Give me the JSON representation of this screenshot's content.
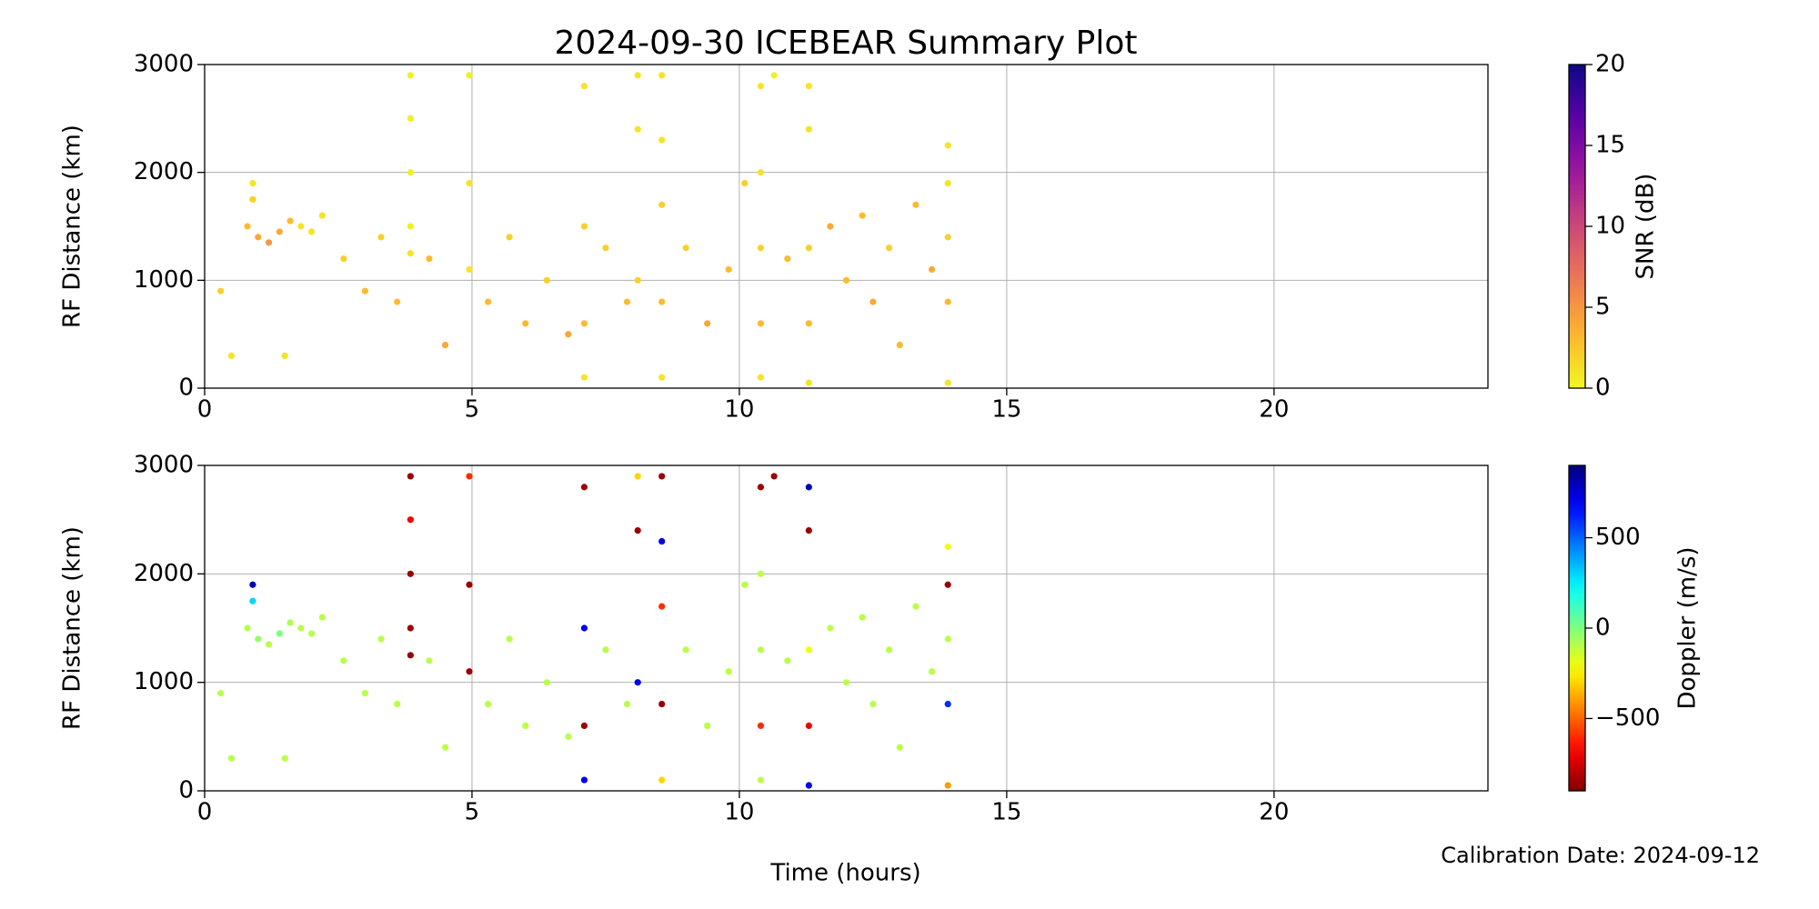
{
  "title": "2024-09-30 ICEBEAR Summary Plot",
  "xlabel": "Time (hours)",
  "calibration": "Calibration Date: 2024-09-12",
  "chart_data": [
    {
      "type": "scatter",
      "ylabel": "RF Distance (km)",
      "colorbar_label": "SNR (dB)",
      "colormap": "plasma_r",
      "clim": [
        0,
        20
      ],
      "cticks": [
        0,
        5,
        10,
        15,
        20
      ],
      "xlim": [
        0,
        24
      ],
      "xticks": [
        0,
        5,
        10,
        15,
        20
      ],
      "ylim": [
        0,
        3000
      ],
      "yticks": [
        0,
        1000,
        2000,
        3000
      ],
      "grid": true,
      "x": [
        0.8,
        1.0,
        1.2,
        1.4,
        1.6,
        0.9,
        0.9,
        1.8,
        2.0,
        2.2,
        0.3,
        0.5,
        1.5,
        2.6,
        3.0,
        3.3,
        3.6,
        3.85,
        3.85,
        3.85,
        3.85,
        3.85,
        4.2,
        4.5,
        4.95,
        4.95,
        4.95,
        5.3,
        5.7,
        6.0,
        6.4,
        6.8,
        7.1,
        7.1,
        7.1,
        7.1,
        7.5,
        7.9,
        8.1,
        8.1,
        8.1,
        8.55,
        8.55,
        8.55,
        8.55,
        8.55,
        9.0,
        9.4,
        9.8,
        10.1,
        10.4,
        10.4,
        10.4,
        10.4,
        10.4,
        10.65,
        10.9,
        11.3,
        11.3,
        11.3,
        11.3,
        11.3,
        11.7,
        12.0,
        12.3,
        12.5,
        12.8,
        13.0,
        13.3,
        13.6,
        13.9,
        13.9,
        13.9,
        13.9,
        13.9
      ],
      "y": [
        1500,
        1400,
        1350,
        1450,
        1550,
        1900,
        1750,
        1500,
        1450,
        1600,
        900,
        300,
        300,
        1200,
        900,
        1400,
        800,
        2900,
        2500,
        2000,
        1500,
        1250,
        1200,
        400,
        2900,
        1900,
        1100,
        800,
        1400,
        600,
        1000,
        500,
        2800,
        1500,
        600,
        100,
        1300,
        800,
        2900,
        2400,
        1000,
        2900,
        2300,
        1700,
        800,
        100,
        1300,
        600,
        1100,
        1900,
        2800,
        2000,
        1300,
        600,
        100,
        2900,
        1200,
        2800,
        2400,
        1300,
        600,
        50,
        1500,
        1000,
        1600,
        800,
        1300,
        400,
        1700,
        1100,
        2250,
        1900,
        1400,
        800,
        50
      ],
      "c": [
        3,
        4,
        5,
        4,
        3,
        1,
        2,
        1,
        1,
        1,
        2,
        1,
        1,
        2,
        3,
        2,
        3,
        0.5,
        0.5,
        0.5,
        0.5,
        1,
        3,
        4,
        0.5,
        1,
        1,
        3,
        2,
        3,
        2,
        4,
        1,
        2,
        3,
        1,
        2,
        3,
        1,
        1,
        2,
        1,
        1,
        2,
        3,
        1,
        2,
        4,
        3,
        2,
        1,
        1,
        2,
        3,
        1,
        0.5,
        3,
        1,
        1,
        2,
        3,
        1,
        4,
        3,
        3,
        4,
        2,
        3,
        3,
        4,
        1,
        1,
        2,
        3,
        1
      ]
    },
    {
      "type": "scatter",
      "ylabel": "RF Distance (km)",
      "colorbar_label": "Doppler (m/s)",
      "colormap": "jet_r",
      "clim": [
        -900,
        900
      ],
      "cticks": [
        {
          "value": -500,
          "label": "−500"
        },
        0,
        500
      ],
      "xlim": [
        0,
        24
      ],
      "xticks": [
        0,
        5,
        10,
        15,
        20
      ],
      "ylim": [
        0,
        3000
      ],
      "yticks": [
        0,
        1000,
        2000,
        3000
      ],
      "grid": true,
      "x": [
        0.8,
        1.0,
        1.2,
        1.4,
        1.6,
        0.9,
        0.9,
        1.8,
        2.0,
        2.2,
        0.3,
        0.5,
        1.5,
        2.6,
        3.0,
        3.3,
        3.6,
        3.85,
        3.85,
        3.85,
        3.85,
        3.85,
        4.2,
        4.5,
        4.95,
        4.95,
        4.95,
        5.3,
        5.7,
        6.0,
        6.4,
        6.8,
        7.1,
        7.1,
        7.1,
        7.1,
        7.5,
        7.9,
        8.1,
        8.1,
        8.1,
        8.55,
        8.55,
        8.55,
        8.55,
        8.55,
        9.0,
        9.4,
        9.8,
        10.1,
        10.4,
        10.4,
        10.4,
        10.4,
        10.4,
        10.65,
        10.9,
        11.3,
        11.3,
        11.3,
        11.3,
        11.3,
        11.7,
        12.0,
        12.3,
        12.5,
        12.8,
        13.0,
        13.3,
        13.6,
        13.9,
        13.9,
        13.9,
        13.9,
        13.9
      ],
      "y": [
        1500,
        1400,
        1350,
        1450,
        1550,
        1900,
        1750,
        1500,
        1450,
        1600,
        900,
        300,
        300,
        1200,
        900,
        1400,
        800,
        2900,
        2500,
        2000,
        1500,
        1250,
        1200,
        400,
        2900,
        1900,
        1100,
        800,
        1400,
        600,
        1000,
        500,
        2800,
        1500,
        600,
        100,
        1300,
        800,
        2900,
        2400,
        1000,
        2900,
        2300,
        1700,
        800,
        100,
        1300,
        600,
        1100,
        1900,
        2800,
        2000,
        1300,
        600,
        100,
        2900,
        1200,
        2800,
        2400,
        1300,
        600,
        50,
        1500,
        1000,
        1600,
        800,
        1300,
        400,
        1700,
        1100,
        2250,
        1900,
        1400,
        800,
        50
      ],
      "c": [
        -100,
        -50,
        -100,
        0,
        -80,
        800,
        300,
        -100,
        -100,
        -100,
        -100,
        -100,
        -100,
        -100,
        -100,
        -100,
        -100,
        -850,
        -700,
        -850,
        -850,
        -850,
        -100,
        -100,
        -600,
        -850,
        -850,
        -100,
        -100,
        -100,
        -100,
        -100,
        -850,
        700,
        -850,
        700,
        -100,
        -100,
        -300,
        -850,
        700,
        -850,
        700,
        -600,
        -850,
        -300,
        -100,
        -100,
        -100,
        -100,
        -850,
        -100,
        -100,
        -600,
        -100,
        -850,
        -100,
        800,
        -850,
        -200,
        -700,
        700,
        -100,
        -100,
        -100,
        -100,
        -100,
        -100,
        -100,
        -100,
        -200,
        -850,
        -100,
        600,
        -400
      ]
    }
  ]
}
